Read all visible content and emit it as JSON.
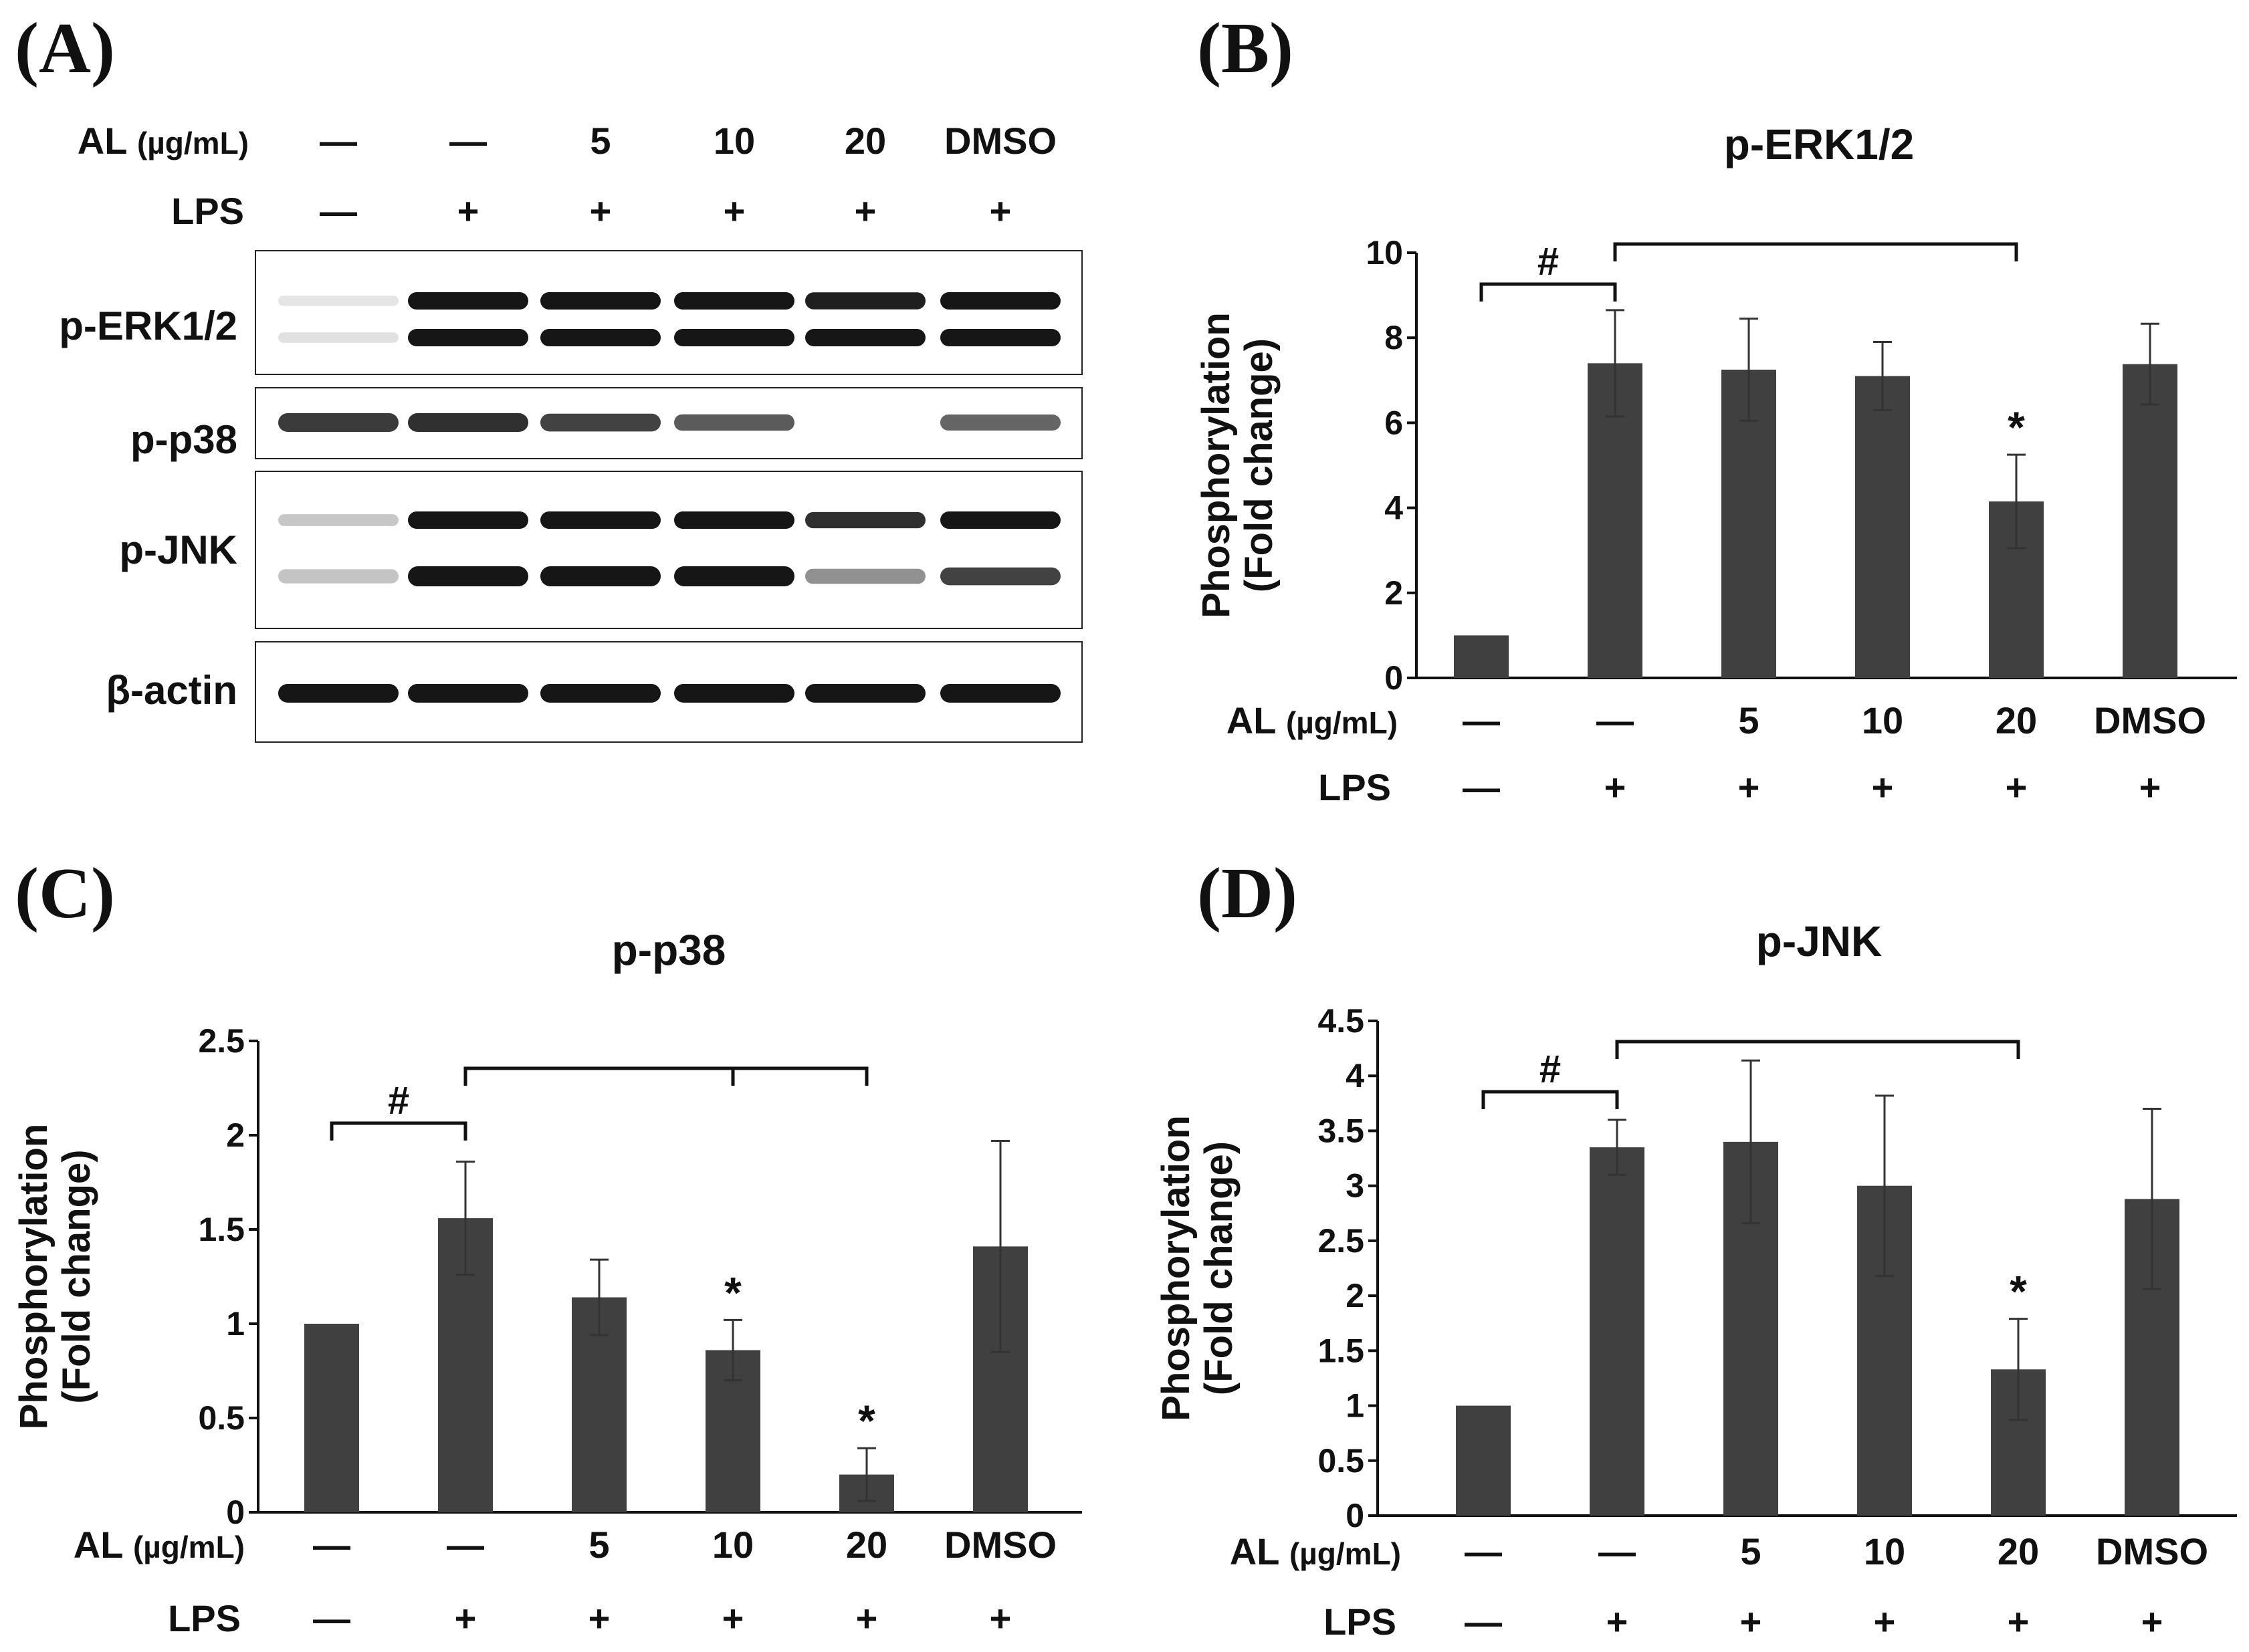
{
  "panels": {
    "A": "(A)",
    "B": "(B)",
    "C": "(C)",
    "D": "(D)"
  },
  "conditions": {
    "al_label_main": "AL",
    "al_label_unit": "(µg/mL)",
    "lps_label": "LPS",
    "al": [
      "—",
      "—",
      "5",
      "10",
      "20",
      "DMSO"
    ],
    "lps": [
      "—",
      "+",
      "+",
      "+",
      "+",
      "+"
    ]
  },
  "blot": {
    "labels": [
      "p-ERK1/2",
      "p-p38",
      "p-JNK",
      "β-actin"
    ]
  },
  "chart_data": [
    {
      "type": "bar",
      "panel": "B",
      "title": "p-ERK1/2",
      "ylabel": "Phosphorylation (Fold change)",
      "ylabel_lines": [
        "Phosphorylation",
        "(Fold change)"
      ],
      "categories": [
        "—",
        "—",
        "5",
        "10",
        "20",
        "DMSO"
      ],
      "values": [
        1.0,
        7.4,
        7.25,
        7.1,
        4.15,
        7.38
      ],
      "errors": [
        0.0,
        1.25,
        1.2,
        0.8,
        1.1,
        0.95
      ],
      "ylim": [
        0,
        10
      ],
      "yticks": [
        "0",
        "2",
        "4",
        "6",
        "8",
        "10"
      ],
      "annotations": {
        "hash": "#",
        "star": "*",
        "star_bars": [
          4
        ]
      }
    },
    {
      "type": "bar",
      "panel": "C",
      "title": "p-p38",
      "ylabel": "Phosphorylation (Fold change)",
      "ylabel_lines": [
        "Phosphorylation",
        "(Fold change)"
      ],
      "categories": [
        "—",
        "—",
        "5",
        "10",
        "20",
        "DMSO"
      ],
      "values": [
        1.0,
        1.56,
        1.14,
        0.86,
        0.2,
        1.41
      ],
      "errors": [
        0.0,
        0.3,
        0.2,
        0.16,
        0.14,
        0.56
      ],
      "ylim": [
        0,
        2.5
      ],
      "yticks": [
        "0",
        "0.5",
        "1",
        "1.5",
        "2",
        "2.5"
      ],
      "annotations": {
        "hash": "#",
        "star": "*",
        "star_bars": [
          3,
          4
        ]
      }
    },
    {
      "type": "bar",
      "panel": "D",
      "title": "p-JNK",
      "ylabel": "Phosphorylation (Fold change)",
      "ylabel_lines": [
        "Phosphorylation",
        "(Fold change)"
      ],
      "categories": [
        "—",
        "—",
        "5",
        "10",
        "20",
        "DMSO"
      ],
      "values": [
        1.0,
        3.35,
        3.4,
        3.0,
        1.33,
        2.88
      ],
      "errors": [
        0.0,
        0.25,
        0.74,
        0.82,
        0.46,
        0.82
      ],
      "ylim": [
        0,
        4.5
      ],
      "yticks": [
        "0",
        "0.5",
        "1",
        "1.5",
        "2",
        "2.5",
        "3",
        "3.5",
        "4",
        "4.5"
      ],
      "annotations": {
        "hash": "#",
        "star": "*",
        "star_bars": [
          4
        ]
      }
    }
  ],
  "colors": {
    "bar": "#404040",
    "axis": "#111111",
    "band": "#161616",
    "background": "#ffffff"
  }
}
